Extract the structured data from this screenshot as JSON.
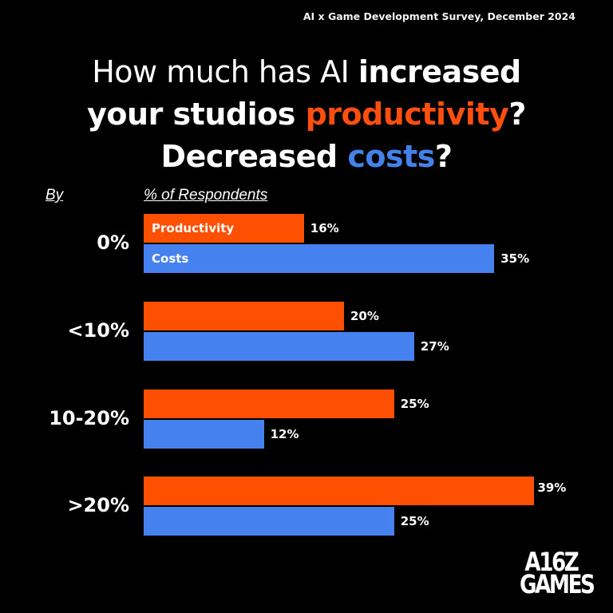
{
  "header": {
    "subtitle": "AI x Game Development Survey, December 2024",
    "title_parts": {
      "p1": "How much has AI ",
      "p2": "increased",
      "p3": "your studios ",
      "p4": "productivity",
      "p5": "?",
      "p6": "Decreased ",
      "p7": "costs",
      "p8": "?"
    }
  },
  "axes": {
    "by_label": "By",
    "pct_label": "% of Respondents"
  },
  "logo": {
    "line1": "A16Z",
    "line2": "GAMES"
  },
  "colors": {
    "productivity": "#ff4f00",
    "costs": "#4582ef",
    "background": "#000000"
  },
  "groups": [
    {
      "label": "0%",
      "productivity": 16,
      "costs": 35,
      "productivity_text": "16%",
      "costs_text": "35%",
      "productivity_bar_label": "Productivity",
      "costs_bar_label": "Costs"
    },
    {
      "label": "<10%",
      "productivity": 20,
      "costs": 27,
      "productivity_text": "20%",
      "costs_text": "27%"
    },
    {
      "label": "10-20%",
      "productivity": 25,
      "costs": 12,
      "productivity_text": "25%",
      "costs_text": "12%"
    },
    {
      "label": ">20%",
      "productivity": 39,
      "costs": 25,
      "productivity_text": "39%",
      "costs_text": "25%"
    }
  ],
  "chart_data": {
    "type": "bar",
    "orientation": "horizontal",
    "title": "How much has AI increased your studios productivity? Decreased costs?",
    "subtitle": "AI x Game Development Survey, December 2024",
    "categories": [
      "0%",
      "<10%",
      "10-20%",
      ">20%"
    ],
    "series": [
      {
        "name": "Productivity",
        "color": "#ff4f00",
        "values": [
          16,
          20,
          25,
          39
        ]
      },
      {
        "name": "Costs",
        "color": "#4582ef",
        "values": [
          35,
          27,
          12,
          25
        ]
      }
    ],
    "xlabel": "% of Respondents",
    "ylabel": "By",
    "grid": false,
    "legend": "inline labels inside first group's bars",
    "value_labels": true,
    "unit": "%"
  }
}
